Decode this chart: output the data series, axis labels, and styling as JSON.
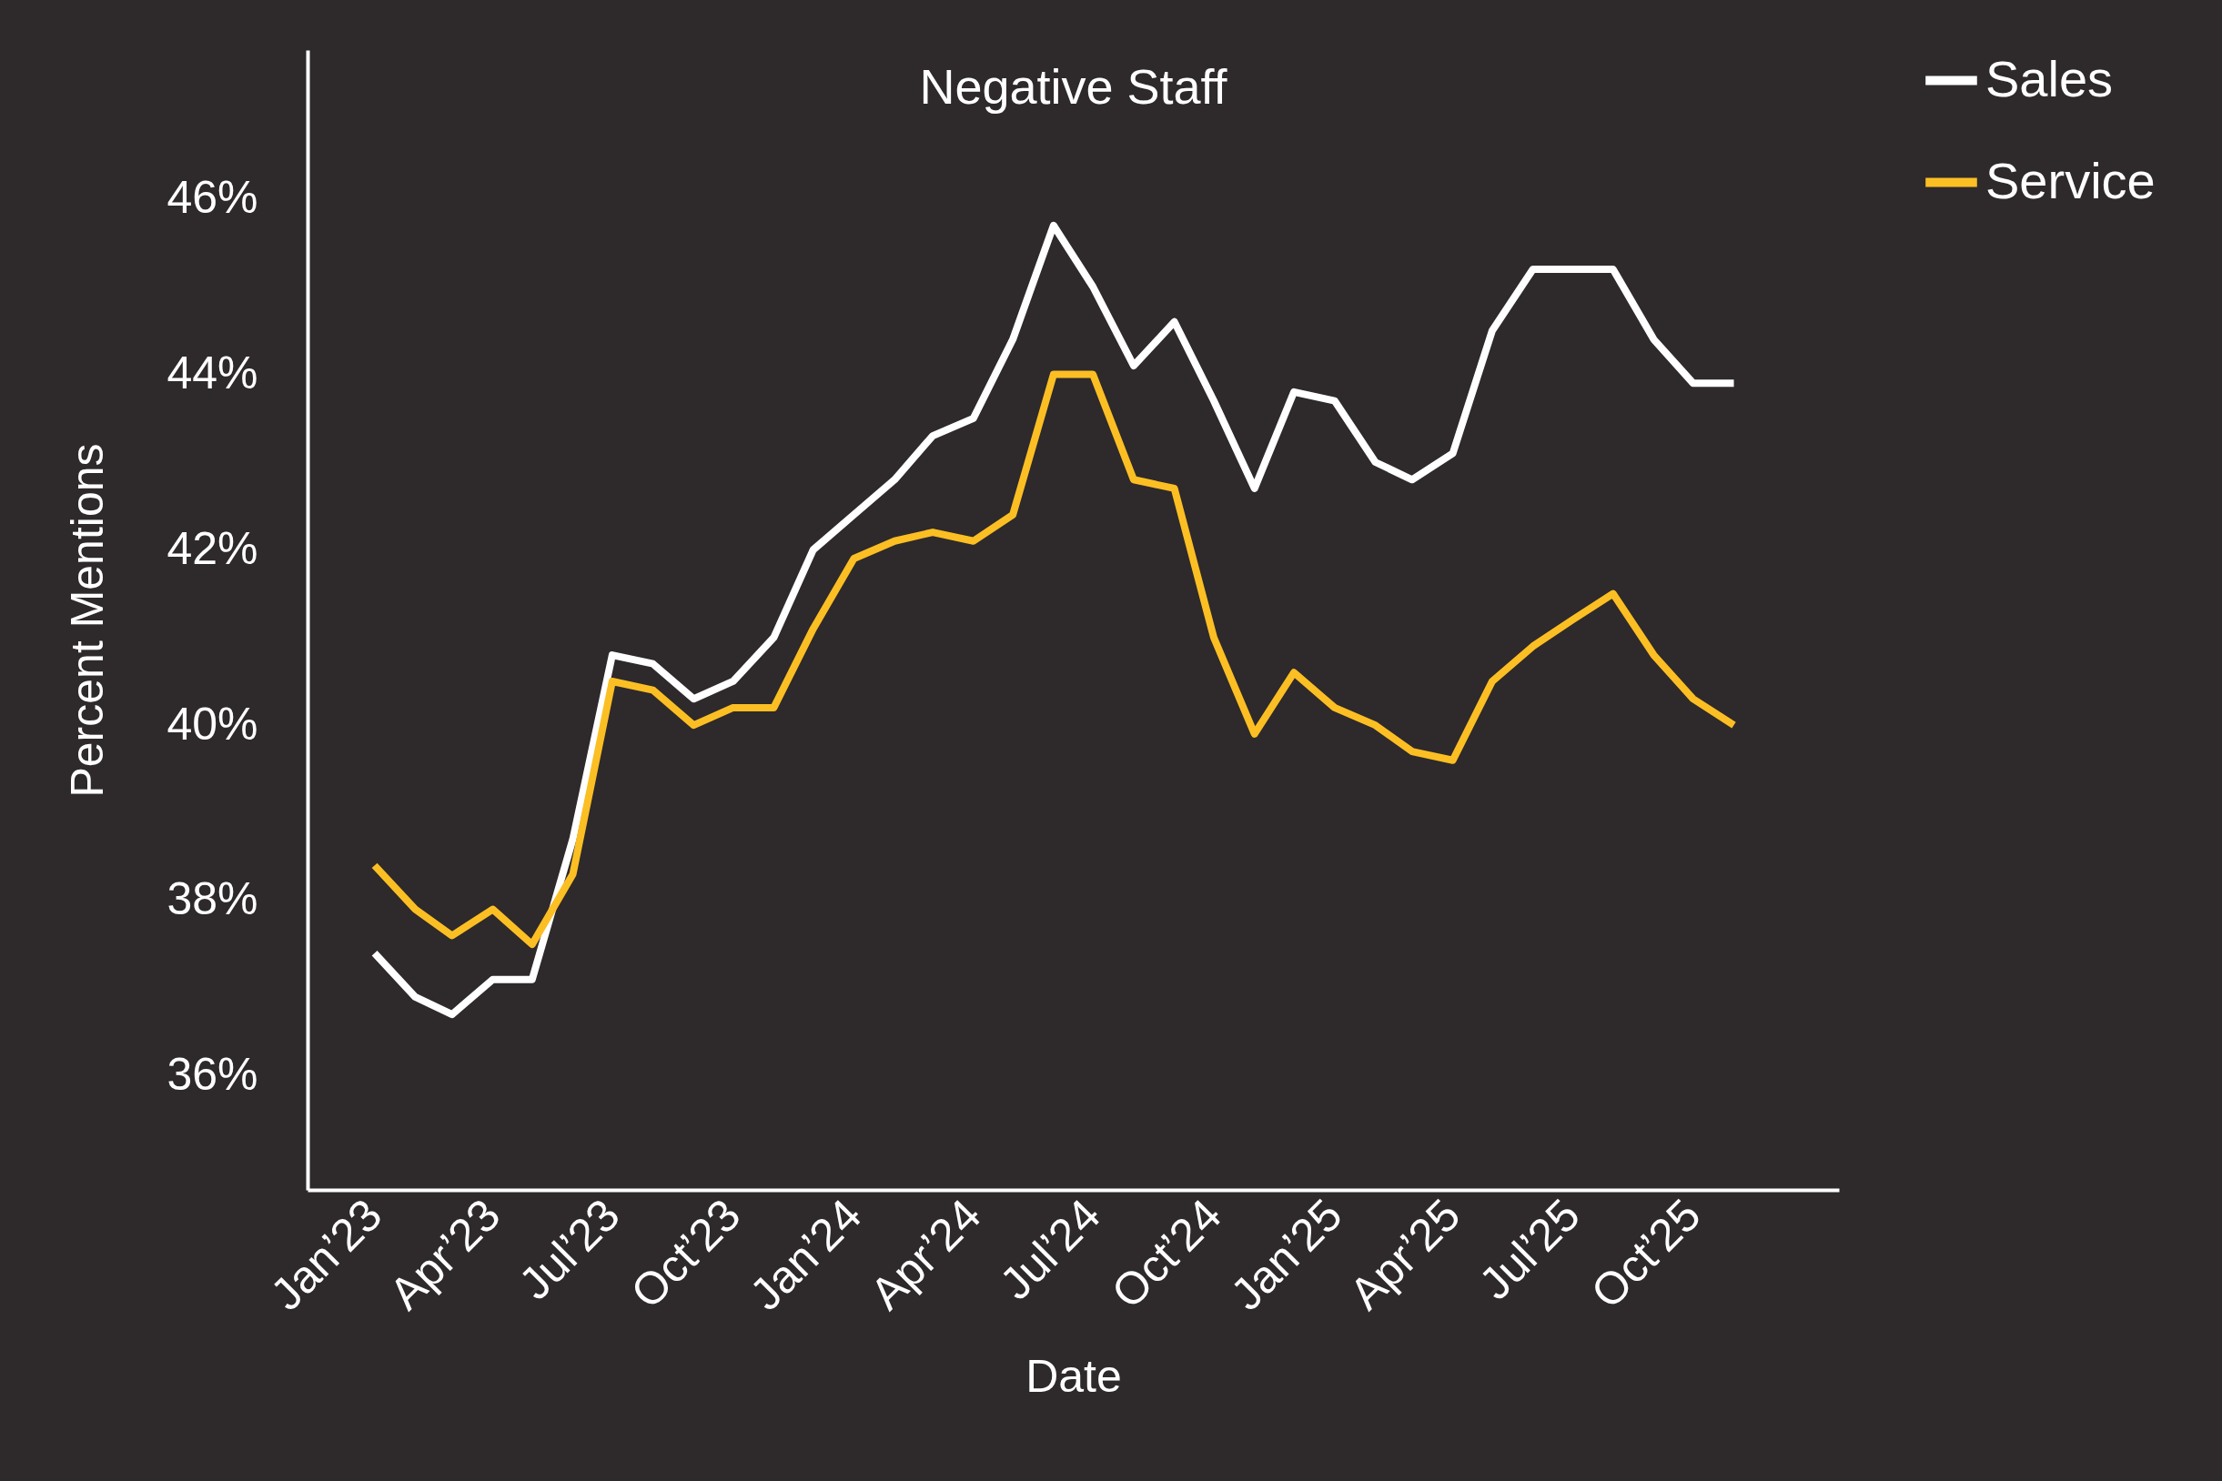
{
  "chart_data": {
    "type": "line",
    "title": "Negative Staff",
    "xlabel": "Date",
    "ylabel": "Percent Mentions",
    "x": [
      "2023-01",
      "2023-02",
      "2023-03",
      "2023-04",
      "2023-05",
      "2023-06",
      "2023-07",
      "2023-08",
      "2023-09",
      "2023-10",
      "2023-11",
      "2023-12",
      "2024-01",
      "2024-02",
      "2024-03",
      "2024-04",
      "2024-05",
      "2024-06",
      "2024-07",
      "2024-08",
      "2024-09",
      "2024-10",
      "2024-11",
      "2024-12",
      "2025-01",
      "2025-02",
      "2025-03",
      "2025-04",
      "2025-05",
      "2025-06",
      "2025-07",
      "2025-08",
      "2025-09",
      "2025-10",
      "2025-11"
    ],
    "series": [
      {
        "name": "Sales",
        "color": "#ffffff",
        "values": [
          37.4,
          36.9,
          36.7,
          37.1,
          37.1,
          38.7,
          40.8,
          40.7,
          40.3,
          40.5,
          41.0,
          42.0,
          42.4,
          42.8,
          43.3,
          43.5,
          44.4,
          45.7,
          45.0,
          44.1,
          44.6,
          43.7,
          42.7,
          43.8,
          43.7,
          43.0,
          42.8,
          43.1,
          44.5,
          45.2,
          45.2,
          45.2,
          44.4,
          43.9,
          43.9
        ]
      },
      {
        "name": "Service",
        "color": "#fbbf24",
        "values": [
          38.4,
          37.9,
          37.6,
          37.9,
          37.5,
          38.3,
          40.5,
          40.4,
          40.0,
          40.2,
          40.2,
          41.1,
          41.9,
          42.1,
          42.2,
          42.1,
          42.4,
          44.0,
          44.0,
          42.8,
          42.7,
          41.0,
          39.9,
          40.6,
          40.2,
          40.0,
          39.7,
          39.6,
          40.5,
          40.9,
          41.2,
          41.5,
          40.8,
          40.3,
          40.0
        ]
      }
    ],
    "xlim": [
      "2022-11-11",
      "2026-01-20"
    ],
    "xticks": [
      {
        "value": "2023-01",
        "label": "Jan’23"
      },
      {
        "value": "2023-04",
        "label": "Apr’23"
      },
      {
        "value": "2023-07",
        "label": "Jul’23"
      },
      {
        "value": "2023-10",
        "label": "Oct’23"
      },
      {
        "value": "2024-01",
        "label": "Jan’24"
      },
      {
        "value": "2024-04",
        "label": "Apr’24"
      },
      {
        "value": "2024-07",
        "label": "Jul’24"
      },
      {
        "value": "2024-10",
        "label": "Oct’24"
      },
      {
        "value": "2025-01",
        "label": "Jan’25"
      },
      {
        "value": "2025-04",
        "label": "Apr’25"
      },
      {
        "value": "2025-07",
        "label": "Jul’25"
      },
      {
        "value": "2025-10",
        "label": "Oct’25"
      }
    ],
    "ylim": [
      34.7,
      47.7
    ],
    "yticks": [
      {
        "value": 36,
        "label": "36%"
      },
      {
        "value": 38,
        "label": "38%"
      },
      {
        "value": 40,
        "label": "40%"
      },
      {
        "value": 42,
        "label": "42%"
      },
      {
        "value": 44,
        "label": "44%"
      },
      {
        "value": 46,
        "label": "46%"
      }
    ],
    "grid": false,
    "legend": "top right",
    "marker": "none",
    "line_style": "solid"
  }
}
